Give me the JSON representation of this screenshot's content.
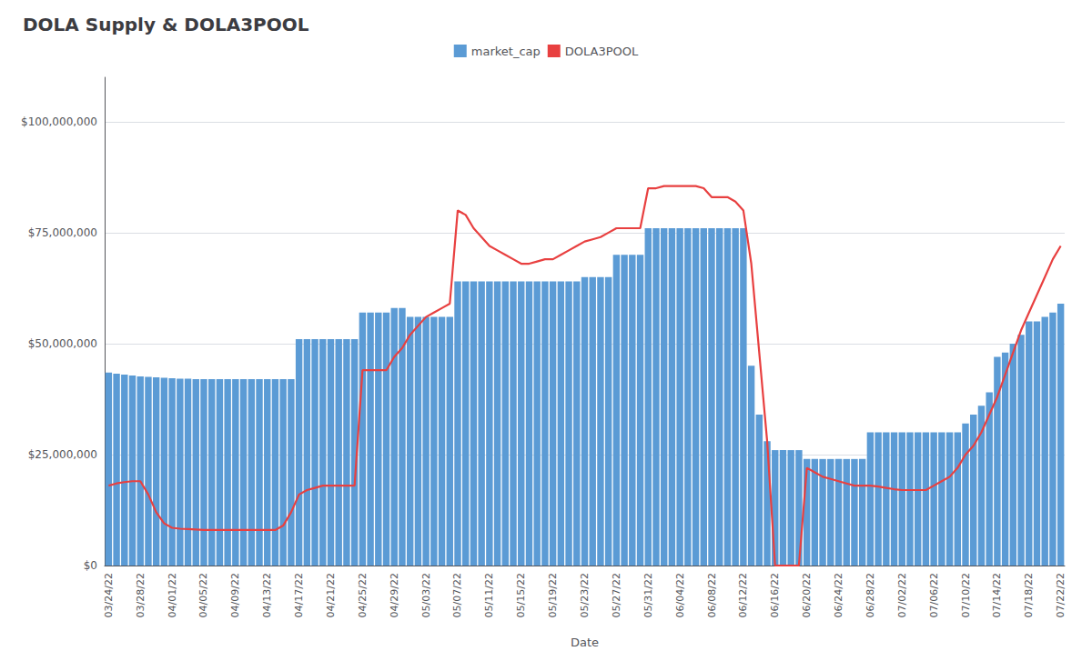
{
  "chart_data": {
    "type": "bar",
    "title": "DOLA Supply & DOLA3POOL",
    "xlabel": "Date",
    "categories": [
      "03/24/22",
      null,
      null,
      null,
      "03/28/22",
      null,
      null,
      null,
      "04/01/22",
      null,
      null,
      null,
      "04/05/22",
      null,
      null,
      null,
      "04/09/22",
      null,
      null,
      null,
      "04/13/22",
      null,
      null,
      null,
      "04/17/22",
      null,
      null,
      null,
      "04/21/22",
      null,
      null,
      null,
      "04/25/22",
      null,
      null,
      null,
      "04/29/22",
      null,
      null,
      null,
      "05/03/22",
      null,
      null,
      null,
      "05/07/22",
      null,
      null,
      null,
      "05/11/22",
      null,
      null,
      null,
      "05/15/22",
      null,
      null,
      null,
      "05/19/22",
      null,
      null,
      null,
      "05/23/22",
      null,
      null,
      null,
      "05/27/22",
      null,
      null,
      null,
      "05/31/22",
      null,
      null,
      null,
      "06/04/22",
      null,
      null,
      null,
      "06/08/22",
      null,
      null,
      null,
      "06/12/22",
      null,
      null,
      null,
      "06/16/22",
      null,
      null,
      null,
      "06/20/22",
      null,
      null,
      null,
      "06/24/22",
      null,
      null,
      null,
      "06/28/22",
      null,
      null,
      null,
      "07/02/22",
      null,
      null,
      null,
      "07/06/22",
      null,
      null,
      null,
      "07/10/22",
      null,
      null,
      null,
      "07/14/22",
      null,
      null,
      null,
      "07/18/22",
      null,
      null,
      null,
      "07/22/22"
    ],
    "series": [
      {
        "name": "market_cap",
        "type": "bar",
        "color": "#5b9bd5",
        "values": [
          43500000,
          43200000,
          43000000,
          42800000,
          42600000,
          42500000,
          42400000,
          42300000,
          42200000,
          42100000,
          42100000,
          42000000,
          42000000,
          42000000,
          42000000,
          42000000,
          42000000,
          42000000,
          42000000,
          42000000,
          42000000,
          42000000,
          42000000,
          42000000,
          51000000,
          51000000,
          51000000,
          51000000,
          51000000,
          51000000,
          51000000,
          51000000,
          57000000,
          57000000,
          57000000,
          57000000,
          58000000,
          58000000,
          56000000,
          56000000,
          56000000,
          56000000,
          56000000,
          56000000,
          64000000,
          64000000,
          64000000,
          64000000,
          64000000,
          64000000,
          64000000,
          64000000,
          64000000,
          64000000,
          64000000,
          64000000,
          64000000,
          64000000,
          64000000,
          64000000,
          65000000,
          65000000,
          65000000,
          65000000,
          70000000,
          70000000,
          70000000,
          70000000,
          76000000,
          76000000,
          76000000,
          76000000,
          76000000,
          76000000,
          76000000,
          76000000,
          76000000,
          76000000,
          76000000,
          76000000,
          76000000,
          45000000,
          34000000,
          28000000,
          26000000,
          26000000,
          26000000,
          26000000,
          24000000,
          24000000,
          24000000,
          24000000,
          24000000,
          24000000,
          24000000,
          24000000,
          30000000,
          30000000,
          30000000,
          30000000,
          30000000,
          30000000,
          30000000,
          30000000,
          30000000,
          30000000,
          30000000,
          30000000,
          32000000,
          34000000,
          36000000,
          39000000,
          47000000,
          48000000,
          50000000,
          52000000,
          55000000,
          55000000,
          56000000,
          57000000,
          59000000
        ]
      },
      {
        "name": "DOLA3POOL",
        "type": "line",
        "color": "#e84040",
        "values": [
          18000000,
          18500000,
          18800000,
          19000000,
          19000000,
          16000000,
          12000000,
          9500000,
          8500000,
          8300000,
          8200000,
          8100000,
          8000000,
          8000000,
          8000000,
          8000000,
          8000000,
          8000000,
          8000000,
          8000000,
          8000000,
          8000000,
          9000000,
          12000000,
          16000000,
          17000000,
          17500000,
          18000000,
          18000000,
          18000000,
          18000000,
          18000000,
          44000000,
          44000000,
          44000000,
          44000000,
          47000000,
          49000000,
          52000000,
          54000000,
          56000000,
          57000000,
          58000000,
          59000000,
          80000000,
          79000000,
          76000000,
          74000000,
          72000000,
          71000000,
          70000000,
          69000000,
          68000000,
          68000000,
          68500000,
          69000000,
          69000000,
          70000000,
          71000000,
          72000000,
          73000000,
          73500000,
          74000000,
          75000000,
          76000000,
          76000000,
          76000000,
          76000000,
          85000000,
          85000000,
          85500000,
          85500000,
          85500000,
          85500000,
          85500000,
          85000000,
          83000000,
          83000000,
          83000000,
          82000000,
          80000000,
          68000000,
          48000000,
          28000000,
          0,
          0,
          0,
          0,
          22000000,
          21000000,
          20000000,
          19500000,
          19000000,
          18500000,
          18000000,
          18000000,
          18000000,
          17800000,
          17500000,
          17200000,
          17000000,
          17000000,
          17000000,
          17000000,
          18000000,
          19000000,
          20000000,
          22000000,
          25000000,
          27000000,
          30000000,
          34000000,
          38000000,
          43000000,
          48000000,
          53000000,
          57000000,
          61000000,
          65000000,
          69000000,
          72000000
        ]
      }
    ],
    "ylim": [
      0,
      110000000
    ],
    "yticks": [
      {
        "value": 0,
        "label": "$0"
      },
      {
        "value": 25000000,
        "label": "$25,000,000"
      },
      {
        "value": 50000000,
        "label": "$50,000,000"
      },
      {
        "value": 75000000,
        "label": "$75,000,000"
      },
      {
        "value": 100000000,
        "label": "$100,000,000"
      }
    ],
    "grid": true,
    "legend": "top"
  }
}
